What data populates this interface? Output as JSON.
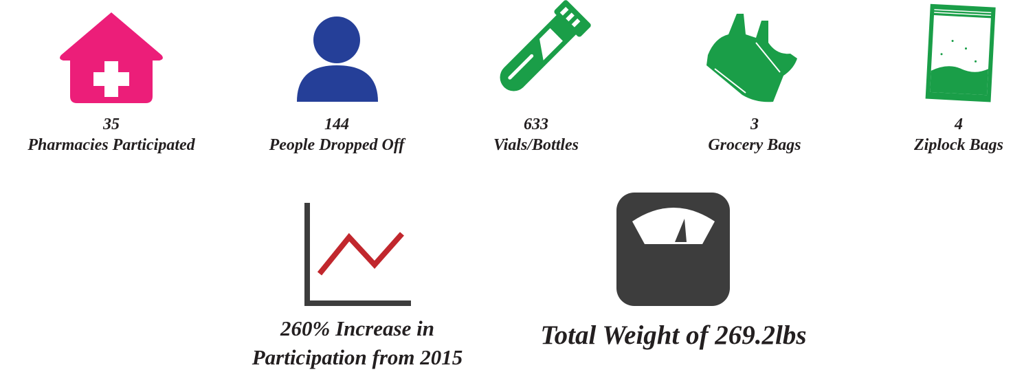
{
  "stats": [
    {
      "value": 35,
      "label": "Pharmacies Participated"
    },
    {
      "value": 144,
      "label": "People Dropped Off"
    },
    {
      "value": 633,
      "label": "Vials/Bottles"
    },
    {
      "value": 3,
      "label": "Grocery Bags"
    },
    {
      "value": 4,
      "label": "Ziplock Bags"
    }
  ],
  "increase": {
    "lines": [
      "260% Increase in",
      "Participation from 2015"
    ]
  },
  "weight": {
    "text": "Total Weight of 269.2lbs"
  }
}
